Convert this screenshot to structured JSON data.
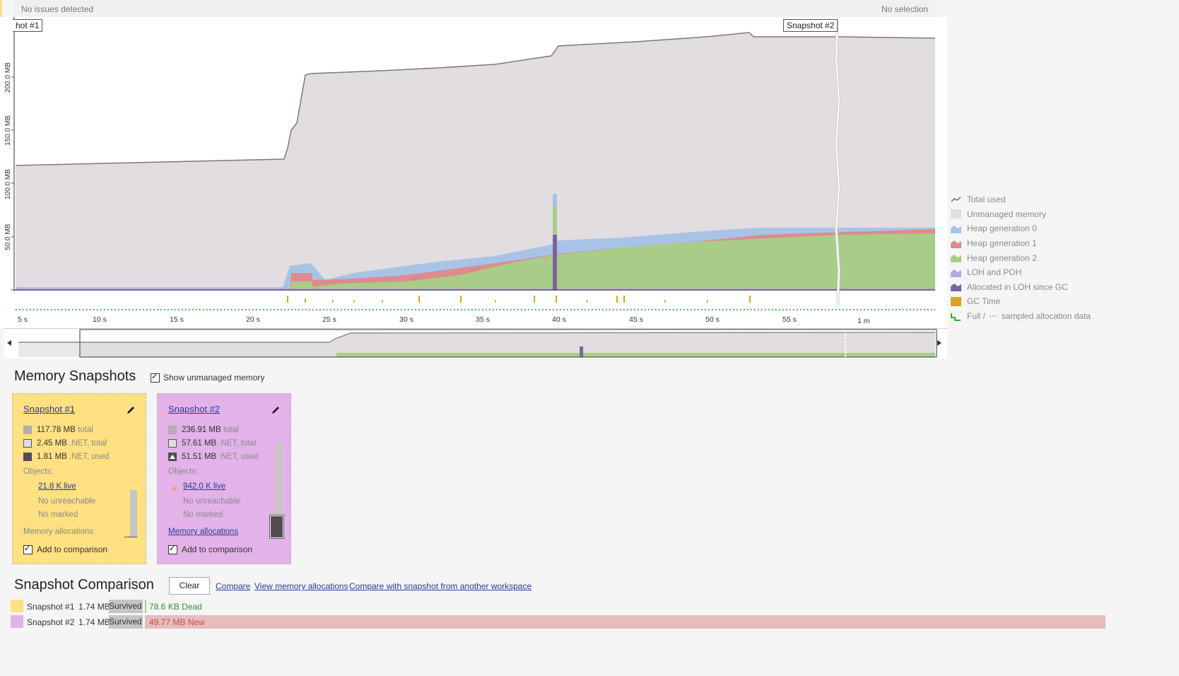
{
  "topbar": {
    "issues": "No issues detected",
    "selection": "No selection"
  },
  "chart": {
    "snapshot1_label": "hot #1",
    "snapshot2_label": "Snapshot #2",
    "y_ticks": [
      "50.0 MB",
      "100.0 MB",
      "150.0 MB",
      "200.0 MB"
    ],
    "x_ticks": [
      "5 s",
      "10 s",
      "15 s",
      "20 s",
      "25 s",
      "30 s",
      "35 s",
      "40 s",
      "45 s",
      "50 s",
      "55 s",
      "1 m"
    ]
  },
  "legend": [
    {
      "label": "Total used",
      "color": "#7a7a7a"
    },
    {
      "label": "Unmanaged memory",
      "color": "#e2dde0"
    },
    {
      "label": "Heap generation 0",
      "color": "#a9c3e6"
    },
    {
      "label": "Heap generation 1",
      "color": "#dc8c8c"
    },
    {
      "label": "Heap generation 2",
      "color": "#a9cc88"
    },
    {
      "label": "LOH and POH",
      "color": "#b8a8e0"
    },
    {
      "label": "Allocated in LOH since GC",
      "color": "#7a649e"
    },
    {
      "label": "GC Time",
      "color": "#d9a520"
    },
    {
      "label": "Full /",
      "label2": "sampled allocation data",
      "color": "#25a025"
    }
  ],
  "snapshots_section": {
    "title": "Memory Snapshots",
    "show_unmanaged": "Show unmanaged memory"
  },
  "snapshot1": {
    "title": "Snapshot #1",
    "total_value": "117.78 MB",
    "total_label": "total",
    "net_total_value": "2.45 MB",
    "net_total_label": ".NET, total",
    "net_used_value": "1.81 MB",
    "net_used_label": ".NET, used",
    "objects_label": "Objects:",
    "live": "21.8 K live",
    "unreachable": "No unreachable",
    "marked": "No marked",
    "allocations": "Memory allocations",
    "add": "Add to comparison",
    "color": "#ffe082"
  },
  "snapshot2": {
    "title": "Snapshot #2",
    "total_value": "236.91 MB",
    "total_label": "total",
    "net_total_value": "57.61 MB",
    "net_total_label": ".NET, total",
    "net_used_value": "51.51 MB",
    "net_used_label": ".NET, used",
    "objects_label": "Objects:",
    "live": "942.0 K live",
    "unreachable": "No unreachable",
    "marked": "No marked",
    "allocations": "Memory allocations",
    "add": "Add to comparison",
    "color": "#e2b2e8"
  },
  "comparison": {
    "title": "Snapshot Comparison",
    "clear": "Clear",
    "compare": "Compare",
    "view_alloc": "View memory allocations",
    "compare_other": "Compare with snapshot from another workspace",
    "rows": [
      {
        "name": "Snapshot #1",
        "size": "1.74 MB",
        "survived": "Survived",
        "delta": "78.6 KB Dead"
      },
      {
        "name": "Snapshot #2",
        "size": "1.74 MB",
        "survived": "Survived",
        "delta": "49.77 MB New"
      }
    ]
  }
}
